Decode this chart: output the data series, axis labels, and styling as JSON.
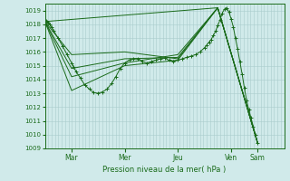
{
  "bg_color": "#d0eaea",
  "grid_color_major": "#aacccc",
  "grid_color_minor": "#c0dddd",
  "line_color": "#1a6b1a",
  "xlabel_text": "Pression niveau de la mer( hPa )",
  "ylim": [
    1009.0,
    1019.5
  ],
  "yticks": [
    1009,
    1010,
    1011,
    1012,
    1013,
    1014,
    1015,
    1016,
    1017,
    1018,
    1019
  ],
  "day_labels": [
    "Mar",
    "Mer",
    "Jeu",
    "Ven",
    "Sam"
  ],
  "day_tick_x": [
    0.167,
    0.5,
    0.833,
    1.167,
    1.33
  ],
  "xlim": [
    0.0,
    1.5
  ],
  "lines": [
    {
      "x": [
        0.0,
        0.007,
        0.014,
        0.021,
        0.028,
        0.042,
        0.056,
        0.083,
        0.111,
        0.139,
        0.167,
        0.18,
        0.194,
        0.222,
        0.25,
        0.278,
        0.306,
        0.333,
        0.361,
        0.389,
        0.417,
        0.444,
        0.472,
        0.5,
        0.528,
        0.556,
        0.583,
        0.611,
        0.639,
        0.667,
        0.694,
        0.722,
        0.75,
        0.778,
        0.806,
        0.833,
        0.861,
        0.889,
        0.917,
        0.944,
        0.972,
        1.0,
        1.014,
        1.028,
        1.042,
        1.056,
        1.07,
        1.083,
        1.097,
        1.111,
        1.125,
        1.139,
        1.153,
        1.167,
        1.181,
        1.194,
        1.208,
        1.222,
        1.236,
        1.25,
        1.264,
        1.278,
        1.292,
        1.306,
        1.319,
        1.333
      ],
      "y": [
        1018.2,
        1018.25,
        1018.2,
        1018.15,
        1018.0,
        1017.8,
        1017.5,
        1017.0,
        1016.4,
        1015.8,
        1015.2,
        1014.9,
        1014.6,
        1014.1,
        1013.6,
        1013.3,
        1013.05,
        1013.0,
        1013.1,
        1013.3,
        1013.7,
        1014.2,
        1014.8,
        1015.2,
        1015.4,
        1015.5,
        1015.5,
        1015.3,
        1015.2,
        1015.3,
        1015.4,
        1015.5,
        1015.55,
        1015.4,
        1015.3,
        1015.4,
        1015.5,
        1015.6,
        1015.7,
        1015.8,
        1016.0,
        1016.3,
        1016.5,
        1016.7,
        1016.9,
        1017.2,
        1017.5,
        1017.9,
        1018.3,
        1018.8,
        1019.1,
        1019.2,
        1018.9,
        1018.4,
        1017.8,
        1017.0,
        1016.2,
        1015.3,
        1014.4,
        1013.4,
        1012.5,
        1011.8,
        1011.2,
        1010.6,
        1010.0,
        1009.4
      ],
      "marker": "+"
    },
    {
      "x": [
        0.0,
        1.083,
        1.333
      ],
      "y": [
        1018.2,
        1019.2,
        1009.4
      ],
      "marker": null
    },
    {
      "x": [
        0.0,
        0.167,
        0.5,
        0.833,
        1.083,
        1.333
      ],
      "y": [
        1018.2,
        1015.8,
        1016.0,
        1015.5,
        1019.2,
        1009.4
      ],
      "marker": null
    },
    {
      "x": [
        0.0,
        0.167,
        0.5,
        0.833,
        1.083,
        1.333
      ],
      "y": [
        1018.2,
        1014.8,
        1015.5,
        1015.6,
        1019.2,
        1009.4
      ],
      "marker": null
    },
    {
      "x": [
        0.0,
        0.167,
        0.5,
        0.833,
        1.083,
        1.333
      ],
      "y": [
        1018.2,
        1014.2,
        1015.2,
        1015.8,
        1019.2,
        1009.4
      ],
      "marker": null
    },
    {
      "x": [
        0.0,
        0.167,
        0.5,
        0.833,
        1.083,
        1.333
      ],
      "y": [
        1018.2,
        1013.2,
        1015.0,
        1015.4,
        1019.2,
        1009.4
      ],
      "marker": null
    }
  ]
}
